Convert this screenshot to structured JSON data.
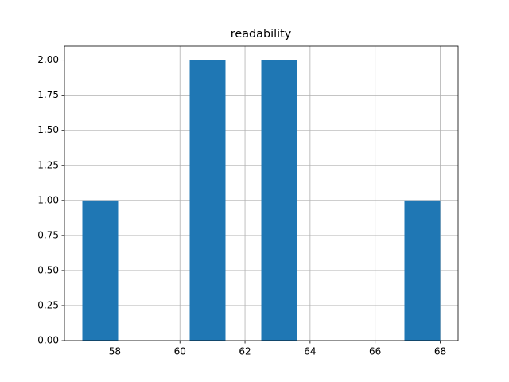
{
  "chart_data": {
    "type": "histogram",
    "title": "readability",
    "bins": [
      57,
      58.1,
      59.2,
      60.3,
      61.4,
      62.5,
      63.6,
      64.7,
      65.8,
      66.9,
      68
    ],
    "values": [
      1,
      0,
      0,
      2,
      0,
      2,
      0,
      0,
      0,
      1
    ],
    "color": "#1f77b4",
    "xlim": [
      56.45,
      68.55
    ],
    "xticks": [
      58,
      60,
      62,
      64,
      66,
      68
    ],
    "ylim": [
      0,
      2.1
    ],
    "yticks": [
      {
        "value": 0,
        "label": "0.00"
      },
      {
        "value": 0.25,
        "label": "0.25"
      },
      {
        "value": 0.5,
        "label": "0.50"
      },
      {
        "value": 0.75,
        "label": "0.75"
      },
      {
        "value": 1,
        "label": "1.00"
      },
      {
        "value": 1.25,
        "label": "1.25"
      },
      {
        "value": 1.5,
        "label": "1.50"
      },
      {
        "value": 1.75,
        "label": "1.75"
      },
      {
        "value": 2,
        "label": "2.00"
      }
    ],
    "grid": true
  }
}
